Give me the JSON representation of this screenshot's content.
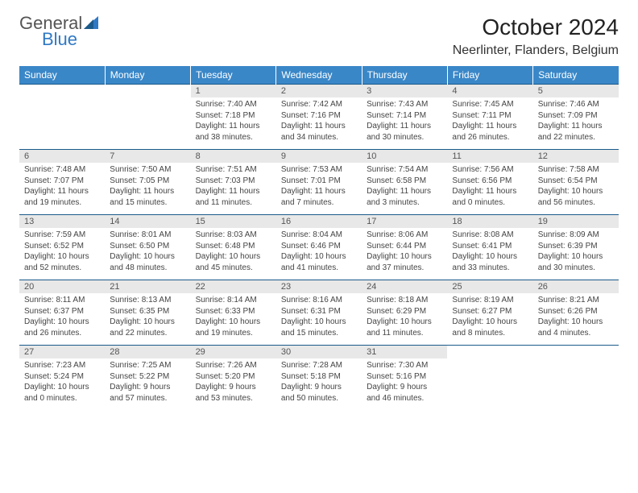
{
  "brand": {
    "word1": "General",
    "word2": "Blue",
    "color_primary": "#2f78c4",
    "color_text": "#555"
  },
  "title": "October 2024",
  "location": "Neerlinter, Flanders, Belgium",
  "header_bg": "#3a87c8",
  "daynum_bg": "#e8e8e8",
  "border_color": "#1a5a8a",
  "weekdays": [
    "Sunday",
    "Monday",
    "Tuesday",
    "Wednesday",
    "Thursday",
    "Friday",
    "Saturday"
  ],
  "weeks": [
    [
      null,
      null,
      {
        "n": "1",
        "sunrise": "7:40 AM",
        "sunset": "7:18 PM",
        "dl": "11 hours and 38 minutes."
      },
      {
        "n": "2",
        "sunrise": "7:42 AM",
        "sunset": "7:16 PM",
        "dl": "11 hours and 34 minutes."
      },
      {
        "n": "3",
        "sunrise": "7:43 AM",
        "sunset": "7:14 PM",
        "dl": "11 hours and 30 minutes."
      },
      {
        "n": "4",
        "sunrise": "7:45 AM",
        "sunset": "7:11 PM",
        "dl": "11 hours and 26 minutes."
      },
      {
        "n": "5",
        "sunrise": "7:46 AM",
        "sunset": "7:09 PM",
        "dl": "11 hours and 22 minutes."
      }
    ],
    [
      {
        "n": "6",
        "sunrise": "7:48 AM",
        "sunset": "7:07 PM",
        "dl": "11 hours and 19 minutes."
      },
      {
        "n": "7",
        "sunrise": "7:50 AM",
        "sunset": "7:05 PM",
        "dl": "11 hours and 15 minutes."
      },
      {
        "n": "8",
        "sunrise": "7:51 AM",
        "sunset": "7:03 PM",
        "dl": "11 hours and 11 minutes."
      },
      {
        "n": "9",
        "sunrise": "7:53 AM",
        "sunset": "7:01 PM",
        "dl": "11 hours and 7 minutes."
      },
      {
        "n": "10",
        "sunrise": "7:54 AM",
        "sunset": "6:58 PM",
        "dl": "11 hours and 3 minutes."
      },
      {
        "n": "11",
        "sunrise": "7:56 AM",
        "sunset": "6:56 PM",
        "dl": "11 hours and 0 minutes."
      },
      {
        "n": "12",
        "sunrise": "7:58 AM",
        "sunset": "6:54 PM",
        "dl": "10 hours and 56 minutes."
      }
    ],
    [
      {
        "n": "13",
        "sunrise": "7:59 AM",
        "sunset": "6:52 PM",
        "dl": "10 hours and 52 minutes."
      },
      {
        "n": "14",
        "sunrise": "8:01 AM",
        "sunset": "6:50 PM",
        "dl": "10 hours and 48 minutes."
      },
      {
        "n": "15",
        "sunrise": "8:03 AM",
        "sunset": "6:48 PM",
        "dl": "10 hours and 45 minutes."
      },
      {
        "n": "16",
        "sunrise": "8:04 AM",
        "sunset": "6:46 PM",
        "dl": "10 hours and 41 minutes."
      },
      {
        "n": "17",
        "sunrise": "8:06 AM",
        "sunset": "6:44 PM",
        "dl": "10 hours and 37 minutes."
      },
      {
        "n": "18",
        "sunrise": "8:08 AM",
        "sunset": "6:41 PM",
        "dl": "10 hours and 33 minutes."
      },
      {
        "n": "19",
        "sunrise": "8:09 AM",
        "sunset": "6:39 PM",
        "dl": "10 hours and 30 minutes."
      }
    ],
    [
      {
        "n": "20",
        "sunrise": "8:11 AM",
        "sunset": "6:37 PM",
        "dl": "10 hours and 26 minutes."
      },
      {
        "n": "21",
        "sunrise": "8:13 AM",
        "sunset": "6:35 PM",
        "dl": "10 hours and 22 minutes."
      },
      {
        "n": "22",
        "sunrise": "8:14 AM",
        "sunset": "6:33 PM",
        "dl": "10 hours and 19 minutes."
      },
      {
        "n": "23",
        "sunrise": "8:16 AM",
        "sunset": "6:31 PM",
        "dl": "10 hours and 15 minutes."
      },
      {
        "n": "24",
        "sunrise": "8:18 AM",
        "sunset": "6:29 PM",
        "dl": "10 hours and 11 minutes."
      },
      {
        "n": "25",
        "sunrise": "8:19 AM",
        "sunset": "6:27 PM",
        "dl": "10 hours and 8 minutes."
      },
      {
        "n": "26",
        "sunrise": "8:21 AM",
        "sunset": "6:26 PM",
        "dl": "10 hours and 4 minutes."
      }
    ],
    [
      {
        "n": "27",
        "sunrise": "7:23 AM",
        "sunset": "5:24 PM",
        "dl": "10 hours and 0 minutes."
      },
      {
        "n": "28",
        "sunrise": "7:25 AM",
        "sunset": "5:22 PM",
        "dl": "9 hours and 57 minutes."
      },
      {
        "n": "29",
        "sunrise": "7:26 AM",
        "sunset": "5:20 PM",
        "dl": "9 hours and 53 minutes."
      },
      {
        "n": "30",
        "sunrise": "7:28 AM",
        "sunset": "5:18 PM",
        "dl": "9 hours and 50 minutes."
      },
      {
        "n": "31",
        "sunrise": "7:30 AM",
        "sunset": "5:16 PM",
        "dl": "9 hours and 46 minutes."
      },
      null,
      null
    ]
  ],
  "labels": {
    "sunrise": "Sunrise:",
    "sunset": "Sunset:",
    "daylight": "Daylight:"
  }
}
